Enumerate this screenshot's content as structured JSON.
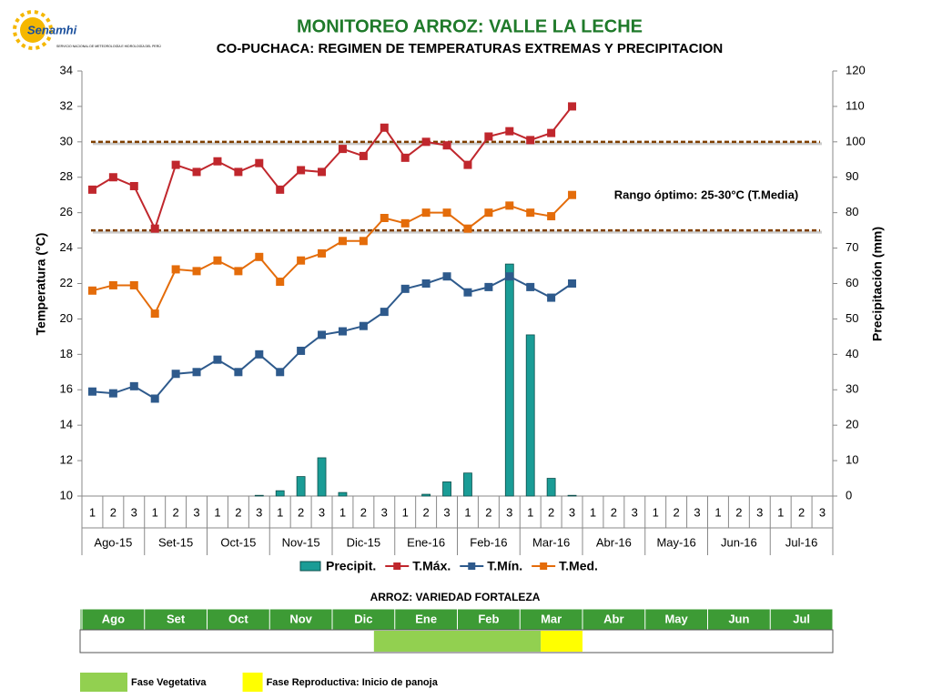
{
  "logo": {
    "name": "Senamhi",
    "subtitle": "SERVICIO NACIONAL DE METEOROLOGÍA E HIDROLOGÍA DEL PERÚ"
  },
  "chart_data": {
    "type": "combo",
    "title": "MONITOREO ARROZ: VALLE LA LECHE",
    "subtitle": "CO-PUCHACA: REGIMEN DE TEMPERATURAS EXTREMAS Y PRECIPITACION",
    "ylabel": "Temperatura (°C)",
    "y2label": "Precipitación (mm)",
    "annotation": "Rango óptimo: 25-30°C (T.Media)",
    "ref_lines": [
      25,
      30
    ],
    "ref_color": "#7f3f00",
    "categories": [
      "1",
      "2",
      "3",
      "1",
      "2",
      "3",
      "1",
      "2",
      "3",
      "1",
      "2",
      "3",
      "1",
      "2",
      "3",
      "1",
      "2",
      "3",
      "1",
      "2",
      "3",
      "1",
      "2",
      "3",
      "1",
      "2",
      "3",
      "1",
      "2",
      "3",
      "1",
      "2",
      "3",
      "1",
      "2",
      "3"
    ],
    "groups": [
      "Ago-15",
      "Set-15",
      "Oct-15",
      "Nov-15",
      "Dic-15",
      "Ene-16",
      "Feb-16",
      "Mar-16",
      "Abr-16",
      "May-16",
      "Jun-16",
      "Jul-16"
    ],
    "ylim": [
      10,
      34
    ],
    "yticks": [
      10,
      12,
      14,
      16,
      18,
      20,
      22,
      24,
      26,
      28,
      30,
      32,
      34
    ],
    "y2lim": [
      0,
      120
    ],
    "y2ticks": [
      0,
      10,
      20,
      30,
      40,
      50,
      60,
      70,
      80,
      90,
      100,
      110,
      120
    ],
    "series": [
      {
        "name": "Precipit.",
        "type": "bar",
        "axis": "y2",
        "color": "#1a9c96",
        "values": [
          0,
          0,
          0,
          0,
          0,
          0,
          0,
          0,
          0.2,
          1.5,
          5.5,
          10.8,
          1.0,
          0,
          0,
          0,
          0.5,
          4.0,
          6.5,
          0,
          65.5,
          45.5,
          5.0,
          0.2,
          null,
          null,
          null,
          null,
          null,
          null,
          null,
          null,
          null,
          null,
          null,
          null
        ]
      },
      {
        "name": "T.Máx.",
        "type": "line",
        "color": "#c0272d",
        "values": [
          27.3,
          28.0,
          27.5,
          25.1,
          28.7,
          28.3,
          28.9,
          28.3,
          28.8,
          27.3,
          28.4,
          28.3,
          29.6,
          29.2,
          30.8,
          29.1,
          30.0,
          29.8,
          28.7,
          30.3,
          30.6,
          30.1,
          30.5,
          32.0,
          null,
          null,
          null,
          null,
          null,
          null,
          null,
          null,
          null,
          null,
          null,
          null
        ]
      },
      {
        "name": "T.Mín.",
        "type": "line",
        "color": "#2e5a8c",
        "values": [
          15.9,
          15.8,
          16.2,
          15.5,
          16.9,
          17.0,
          17.7,
          17.0,
          18.0,
          17.0,
          18.2,
          19.1,
          19.3,
          19.6,
          20.4,
          21.7,
          22.0,
          22.4,
          21.5,
          21.8,
          22.4,
          21.8,
          21.2,
          22.0,
          null,
          null,
          null,
          null,
          null,
          null,
          null,
          null,
          null,
          null,
          null,
          null
        ]
      },
      {
        "name": "T.Med.",
        "type": "line",
        "color": "#e46c0a",
        "values": [
          21.6,
          21.9,
          21.9,
          20.3,
          22.8,
          22.7,
          23.3,
          22.7,
          23.5,
          22.1,
          23.3,
          23.7,
          24.4,
          24.4,
          25.7,
          25.4,
          26.0,
          26.0,
          25.1,
          26.0,
          26.4,
          26.0,
          25.8,
          27.0,
          null,
          null,
          null,
          null,
          null,
          null,
          null,
          null,
          null,
          null,
          null,
          null
        ]
      }
    ]
  },
  "crop": {
    "title": "ARROZ: VARIEDAD FORTALEZA",
    "months": [
      "Ago",
      "Set",
      "Oct",
      "Nov",
      "Dic",
      "Ene",
      "Feb",
      "Mar",
      "Abr",
      "May",
      "Jun",
      "Jul"
    ],
    "phases": [
      {
        "name": "Fase Vegetativa",
        "color": "#92d050",
        "start": 14,
        "end": 22
      },
      {
        "name": "Fase Reproductiva: Inicio de panoja",
        "color": "#ffff00",
        "start": 22,
        "end": 24
      }
    ]
  }
}
